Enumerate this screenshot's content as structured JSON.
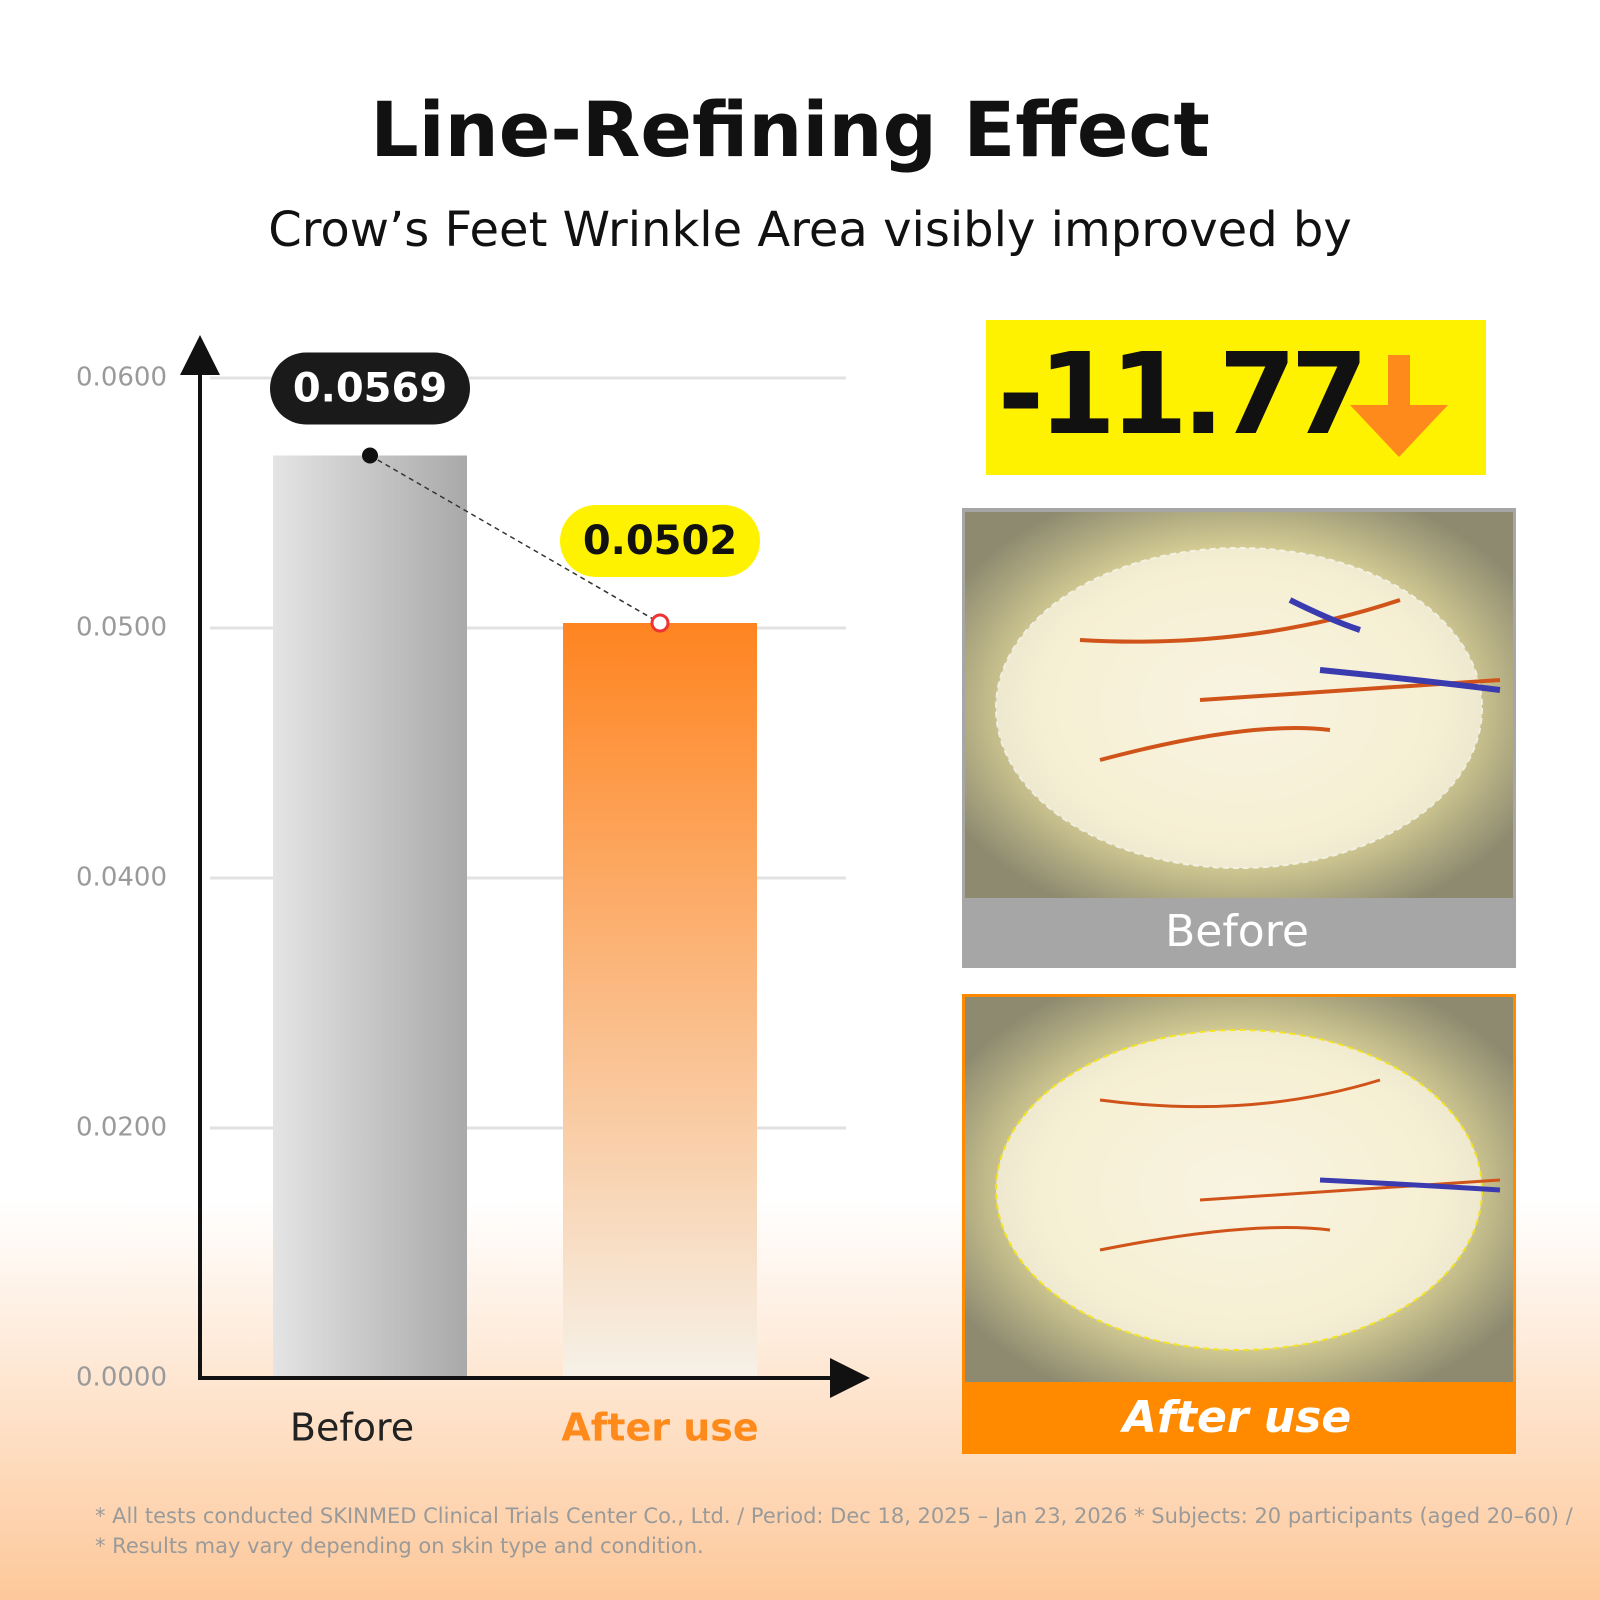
{
  "chart_data": {
    "type": "bar",
    "title": "Line-Refining Effect",
    "subtitle": "Crow’s Feet Wrinkle Area visibly improved by",
    "categories": [
      "Before",
      "After use"
    ],
    "values": [
      0.0569,
      0.0502
    ],
    "colors": [
      "#a9a9a9",
      "#ff8420"
    ],
    "ylim": [
      0,
      0.06
    ],
    "yticks": [
      {
        "value": 0,
        "label": "0.0000"
      },
      {
        "value": 0.02,
        "label": "0.0200"
      },
      {
        "value": 0.04,
        "label": "0.0400"
      },
      {
        "value": 0.05,
        "label": "0.0500"
      },
      {
        "value": 0.06,
        "label": "0.0600"
      }
    ],
    "grid": true,
    "callout": "-11.77",
    "image_labels": [
      "Before",
      "After use"
    ],
    "footnotes": [
      "* All tests conducted SKINMED Clinical Trials Center Co., Ltd. / Period: Dec 18, 2025 – Jan 23, 2026  * Subjects: 20 participants (aged 20–60) /",
      "* Results may vary depending on skin type and condition."
    ]
  }
}
